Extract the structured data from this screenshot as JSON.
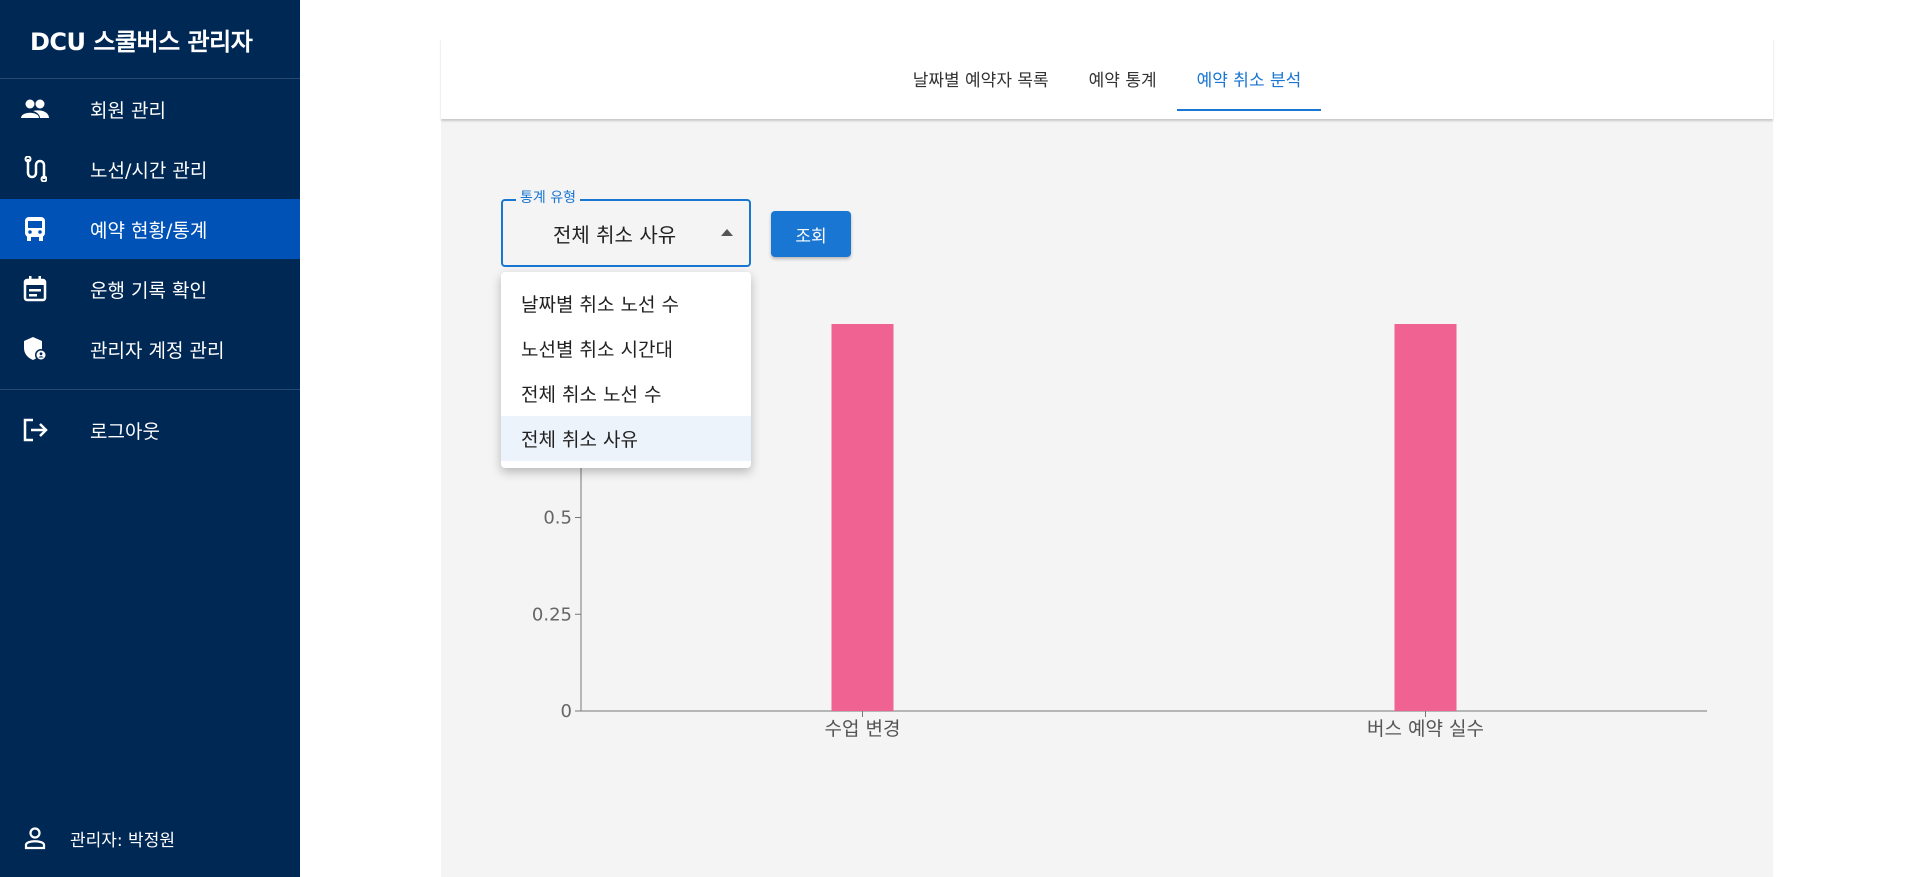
{
  "app_title": "DCU 스쿨버스 관리자",
  "sidebar": {
    "items": [
      {
        "label": "회원 관리",
        "icon": "people-icon"
      },
      {
        "label": "노선/시간 관리",
        "icon": "route-icon"
      },
      {
        "label": "예약 현황/통계",
        "icon": "bus-icon",
        "active": true
      },
      {
        "label": "운행 기록 확인",
        "icon": "calendar-icon"
      },
      {
        "label": "관리자 계정 관리",
        "icon": "admin-shield-icon"
      },
      {
        "label": "로그아웃",
        "icon": "logout-icon"
      }
    ],
    "user_label": "관리자: 박정원"
  },
  "tabs": [
    {
      "label": "날짜별 예약자 목록"
    },
    {
      "label": "예약 통계"
    },
    {
      "label": "예약 취소 분석",
      "active": true
    }
  ],
  "filter": {
    "label": "통계 유형",
    "selected": "전체 취소 사유",
    "options": [
      "날짜별 취소 노선 수",
      "노선별 취소 시간대",
      "전체 취소 노선 수",
      "전체 취소 사유"
    ],
    "query_button": "조회"
  },
  "colors": {
    "sidebar_bg": "#002855",
    "sidebar_active": "#0152b6",
    "accent": "#1976d2",
    "bar": "#f06292"
  },
  "chart_data": {
    "type": "bar",
    "categories": [
      "수업 변경",
      "버스 예약 실수"
    ],
    "values": [
      1,
      1
    ],
    "ylim": [
      0,
      1
    ],
    "yticks": [
      0,
      0.25,
      0.5
    ],
    "ytick_labels": [
      "0",
      "0.25",
      "0.5"
    ],
    "title": "",
    "xlabel": "",
    "ylabel": ""
  }
}
